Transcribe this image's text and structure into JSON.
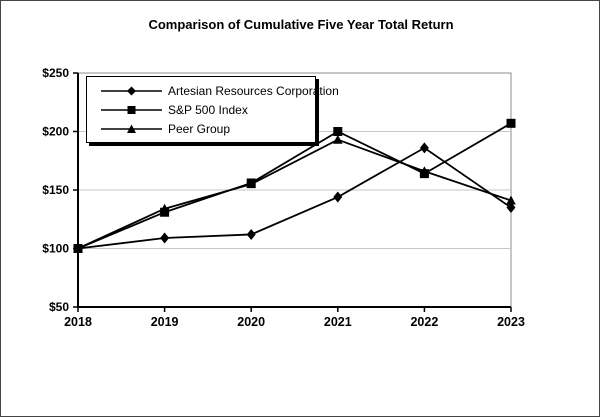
{
  "chart_data": {
    "type": "line",
    "title": "Comparison of Cumulative Five Year Total Return",
    "categories": [
      "2018",
      "2019",
      "2020",
      "2021",
      "2022",
      "2023"
    ],
    "series": [
      {
        "name": "Artesian Resources Corporation",
        "marker": "diamond",
        "values": [
          100,
          109,
          112,
          144,
          186,
          135
        ]
      },
      {
        "name": "S&P 500 Index",
        "marker": "square",
        "values": [
          100,
          131,
          156,
          200,
          164,
          207
        ]
      },
      {
        "name": "Peer Group",
        "marker": "triangle",
        "values": [
          100,
          134,
          155,
          193,
          166,
          141
        ]
      }
    ],
    "xlabel": "",
    "ylabel": "",
    "ylim": [
      50,
      250
    ],
    "y_ticks": [
      {
        "value": 50,
        "label": "$50"
      },
      {
        "value": 100,
        "label": "$100"
      },
      {
        "value": 150,
        "label": "$150"
      },
      {
        "value": 200,
        "label": "$200"
      },
      {
        "value": 250,
        "label": "$250"
      }
    ],
    "grid": "horizontal-gridlines-on",
    "legend_position": "inside-top-left",
    "series_color": "#000000",
    "grid_color": "#c6c6c6",
    "plot_border_color": "#8c8c8c",
    "axis_color": "#000000"
  }
}
